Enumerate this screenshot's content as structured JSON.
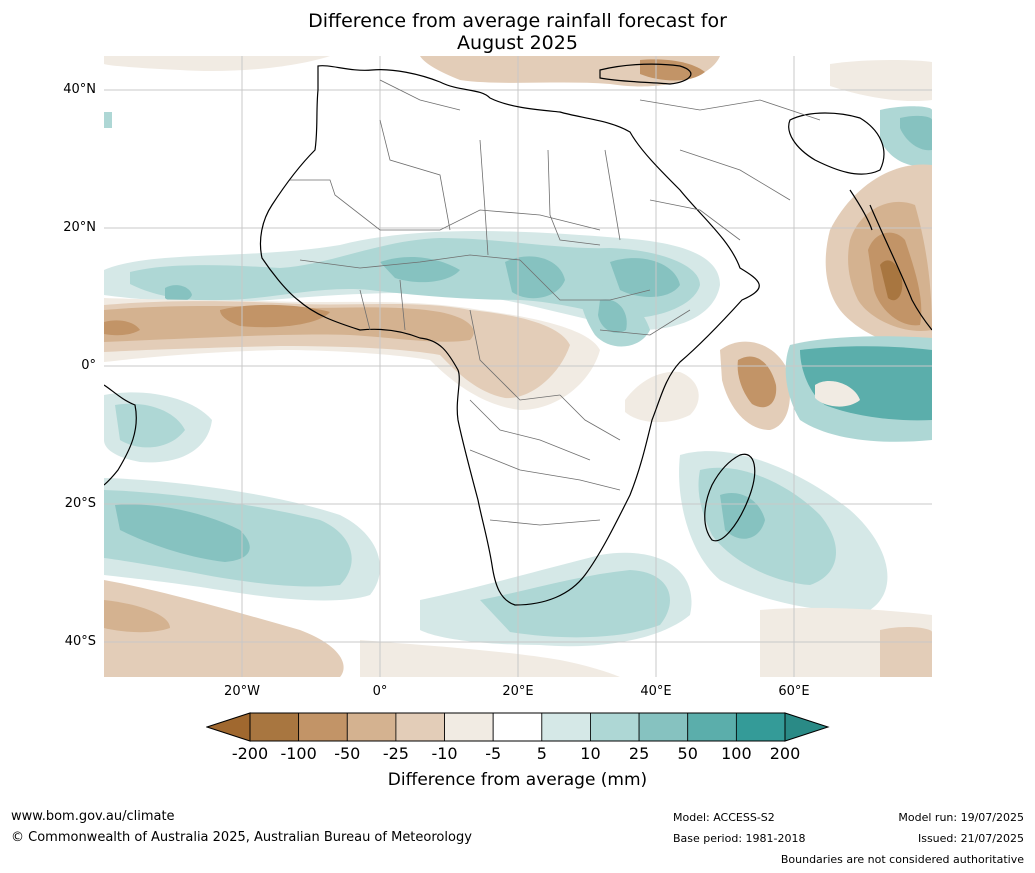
{
  "title": {
    "line1": "Difference from average rainfall forecast for",
    "line2": "August 2025"
  },
  "lat_ticks": [
    "40°N",
    "20°N",
    "0°",
    "20°S",
    "40°S"
  ],
  "lon_ticks": [
    "20°W",
    "0°",
    "20°E",
    "40°E",
    "60°E"
  ],
  "colorbar": {
    "labels": [
      "-200",
      "-100",
      "-50",
      "-25",
      "-10",
      "-5",
      "5",
      "10",
      "25",
      "50",
      "100",
      "200"
    ],
    "colors": [
      "#a87640",
      "#c29467",
      "#d4b290",
      "#e3cdb8",
      "#f1ebe3",
      "#ffffff",
      "#d5e8e7",
      "#aed7d5",
      "#86c2c0",
      "#5baeab",
      "#349b98"
    ],
    "low_color": "#a0682f",
    "high_color": "#2a8a86",
    "title": "Difference from average (mm)"
  },
  "footer": {
    "url": "www.bom.gov.au/climate",
    "copyright": "© Commonwealth of Australia 2025, Australian Bureau of Meteorology",
    "model": "Model: ACCESS-S2",
    "base_period": "Base period: 1981-2018",
    "model_run": "Model run: 19/07/2025",
    "issued": "Issued: 21/07/2025",
    "disclaimer": "Boundaries are not considered authoritative"
  }
}
